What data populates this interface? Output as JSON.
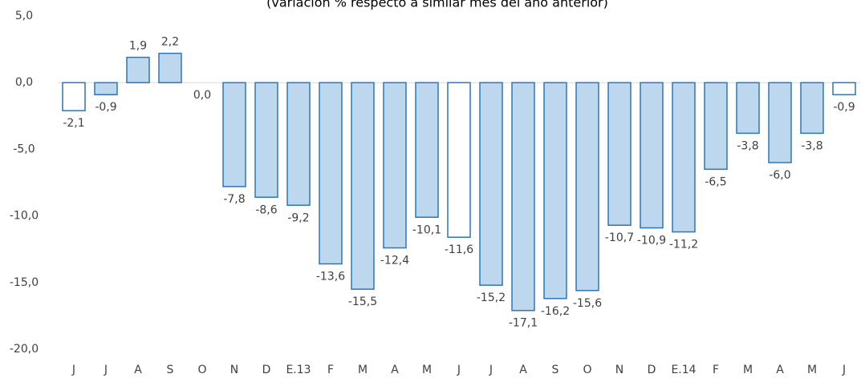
{
  "chart_data": {
    "type": "bar",
    "subtitle": "(variación % respecto a similar mes del año anterior)",
    "categories": [
      "J",
      "J",
      "A",
      "S",
      "O",
      "N",
      "D",
      "E.13",
      "F",
      "M",
      "A",
      "M",
      "J",
      "J",
      "A",
      "S",
      "O",
      "N",
      "D",
      "E.14",
      "F",
      "M",
      "A",
      "M",
      "J"
    ],
    "values": [
      -2.1,
      -0.9,
      1.9,
      2.2,
      0.0,
      -7.8,
      -8.6,
      -9.2,
      -13.6,
      -15.5,
      -12.4,
      -10.1,
      -11.6,
      -15.2,
      -17.1,
      -16.2,
      -15.6,
      -10.7,
      -10.9,
      -11.2,
      -6.5,
      -3.8,
      -6.0,
      -3.8,
      -0.9
    ],
    "value_labels": [
      "-2,1",
      "-0,9",
      "1,9",
      "2,2",
      "0,0",
      "-7,8",
      "-8,6",
      "-9,2",
      "-13,6",
      "-15,5",
      "-12,4",
      "-10,1",
      "-11,6",
      "-15,2",
      "-17,1",
      "-16,2",
      "-15,6",
      "-10,7",
      "-10,9",
      "-11,2",
      "-6,5",
      "-3,8",
      "-6,0",
      "-3,8",
      "-0,9"
    ],
    "colors": [
      "#ffffff",
      "#bdd7ee",
      "#bdd7ee",
      "#bdd7ee",
      "#bdd7ee",
      "#bdd7ee",
      "#bdd7ee",
      "#bdd7ee",
      "#bdd7ee",
      "#bdd7ee",
      "#bdd7ee",
      "#bdd7ee",
      "#ffffff",
      "#bdd7ee",
      "#bdd7ee",
      "#bdd7ee",
      "#bdd7ee",
      "#bdd7ee",
      "#bdd7ee",
      "#bdd7ee",
      "#bdd7ee",
      "#bdd7ee",
      "#bdd7ee",
      "#bdd7ee",
      "#ffffff"
    ],
    "edge_color": "#2e75b6",
    "ylim": [
      -20,
      5
    ],
    "yticks": [
      {
        "value": -20,
        "label": "-20,0"
      },
      {
        "value": -15,
        "label": "-15,0"
      },
      {
        "value": -10,
        "label": "-10,0"
      },
      {
        "value": -5,
        "label": "-5,0"
      },
      {
        "value": 0,
        "label": "0,0"
      },
      {
        "value": 5,
        "label": "5,0"
      }
    ],
    "grid": false
  }
}
